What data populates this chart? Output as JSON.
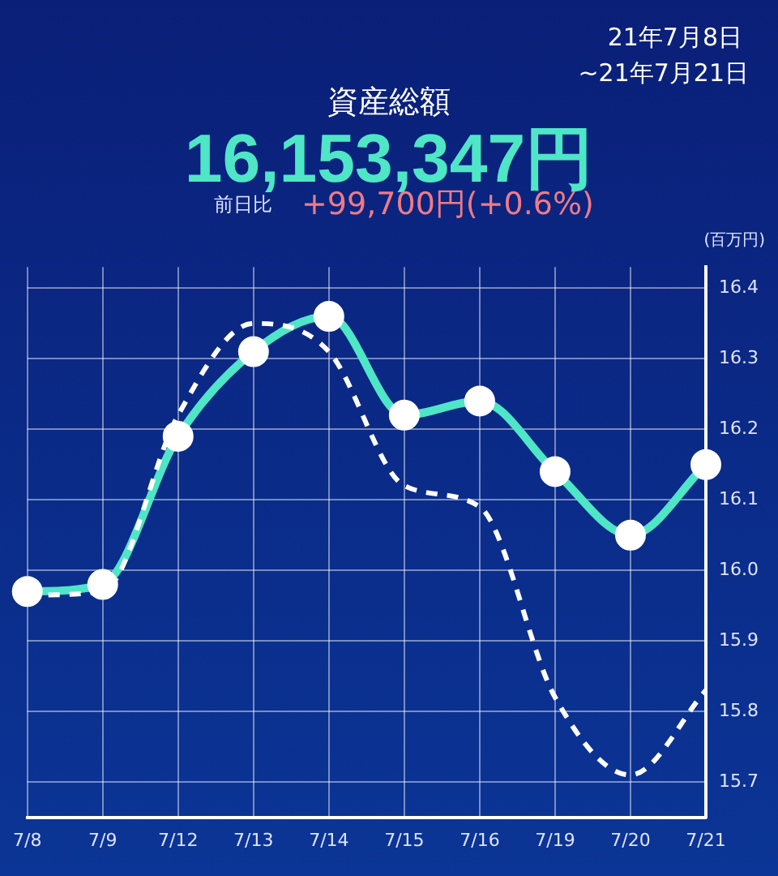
{
  "chart_data": {
    "type": "line",
    "title": "資産総額",
    "subtitle": "16,153,347円",
    "ylabel": "(百万円)",
    "annotations": [
      "21年7月8日",
      "~21年7月21日",
      "前日比",
      "+99,700円(+0.6%)"
    ],
    "categories": [
      "7/8",
      "7/9",
      "7/12",
      "7/13",
      "7/14",
      "7/15",
      "7/16",
      "7/19",
      "7/20",
      "7/21"
    ],
    "series": [
      {
        "color": "#ffffff",
        "line_style": "dashed",
        "marker": "none",
        "values": [
          15.965,
          15.97,
          16.22,
          16.35,
          16.31,
          16.12,
          16.09,
          15.82,
          15.71,
          15.83
        ]
      },
      {
        "color": "#4ee6c6",
        "line_style": "solid",
        "marker": "circle",
        "values": [
          15.97,
          15.98,
          16.19,
          16.31,
          16.36,
          16.22,
          16.24,
          16.14,
          16.05,
          16.15
        ]
      }
    ],
    "ylim": [
      15.65,
      16.43
    ],
    "yticks": [
      15.7,
      15.8,
      15.9,
      {
        "value": 16,
        "label": "16.0"
      },
      16.1,
      16.2,
      16.3,
      16.4
    ],
    "grid": true,
    "legend": false
  }
}
